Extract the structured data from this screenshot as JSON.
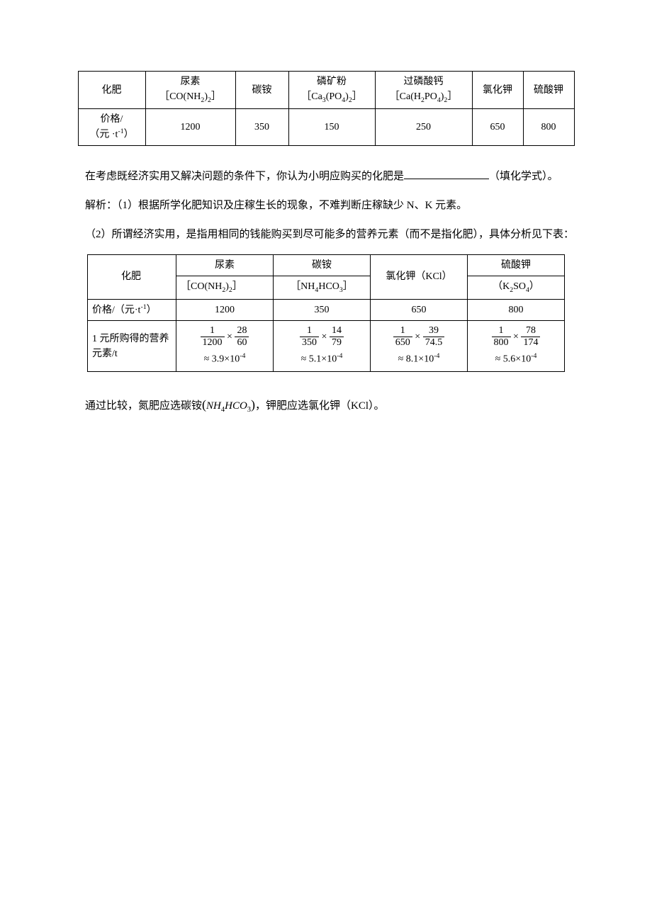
{
  "table1": {
    "header_row": {
      "label": "化肥",
      "cols": [
        {
          "name": "尿素",
          "formula_html": "［CO(NH<sub>2</sub>)<sub>2</sub>］"
        },
        {
          "name": "碳铵",
          "formula_html": ""
        },
        {
          "name": "磷矿粉",
          "formula_html": "［Ca<sub>3</sub>(PO<sub>4</sub>)<sub>2</sub>］"
        },
        {
          "name": "过磷酸钙",
          "formula_html": "［Ca(H<sub>2</sub>PO<sub>4</sub>)<sub>2</sub>］"
        },
        {
          "name": "氯化钾",
          "formula_html": ""
        },
        {
          "name": "硫酸钾",
          "formula_html": ""
        }
      ]
    },
    "price_row": {
      "label_html": "价格/<br>（元 ·t<sup>-1</sup>）",
      "values": [
        "1200",
        "350",
        "150",
        "250",
        "650",
        "800"
      ]
    }
  },
  "para1_pre": "在考虑既经济实用又解决问题的条件下，你认为小明应购买的化肥是",
  "para1_post": "（填化学式）。",
  "para2": "解析：（1）根据所学化肥知识及庄稼生长的现象，不难判断庄稼缺少 N、K 元素。",
  "para3": "（2）所谓经济实用，是指用相同的钱能购买到尽可能多的营养元素（而不是指化肥），具体分析见下表：",
  "table2": {
    "header_row": {
      "label": "化肥",
      "cols": [
        {
          "name": "尿素",
          "formula_html": "［CO(NH<sub>2</sub>)<sub>2</sub>］"
        },
        {
          "name": "碳铵",
          "formula_html": "［NH<sub>4</sub>HCO<sub>3</sub>］"
        },
        {
          "name_html": "氯化钾（KCl）",
          "formula_html": ""
        },
        {
          "name": "硫酸钾",
          "formula_html": "（K<sub>2</sub>SO<sub>4</sub>）"
        }
      ]
    },
    "price_row": {
      "label_html": "价格/（元·t<sup>-1</sup>）",
      "values": [
        "1200",
        "350",
        "650",
        "800"
      ]
    },
    "calc_row": {
      "label": "1 元所购得的营养元素/t",
      "cells": [
        {
          "f1n": "1",
          "f1d": "1200",
          "f2n": "28",
          "f2d": "60",
          "approx": "≈ 3.9×10<sup>-4</sup>"
        },
        {
          "f1n": "1",
          "f1d": "350",
          "f2n": "14",
          "f2d": "79",
          "approx": "≈ 5.1×10<sup>-4</sup>"
        },
        {
          "f1n": "1",
          "f1d": "650",
          "f2n": "39",
          "f2d": "74.5",
          "approx": "≈ 8.1×10<sup>-4</sup>"
        },
        {
          "f1n": "1",
          "f1d": "800",
          "f2n": "78",
          "f2d": "174",
          "approx": "≈ 5.6×10<sup>-4</sup>"
        }
      ]
    }
  },
  "conclusion_pre": "通过比较，氮肥应选碳铵",
  "conclusion_formula_html": "<span class=\"formula-paren\">(</span><i>NH</i><sub>4</sub><i>HCO</i><sub>3</sub><span class=\"formula-paren\">)</span>",
  "conclusion_post": "，钾肥应选氯化钾（KCl）。"
}
